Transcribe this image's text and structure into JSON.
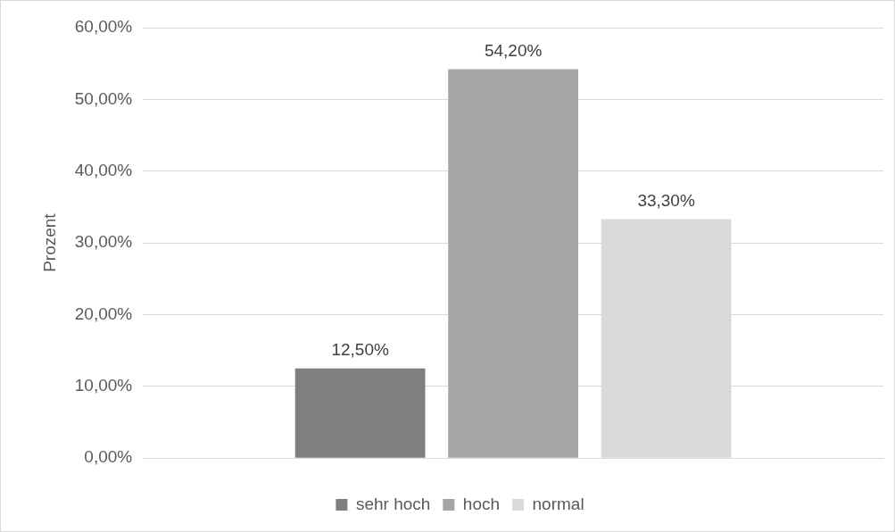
{
  "chart_data": {
    "type": "bar",
    "ylabel": "Prozent",
    "categories": [
      null
    ],
    "series": [
      {
        "name": "sehr hoch",
        "color": "#7f7f7f",
        "values": [
          12.5
        ],
        "value_labels": [
          "12,50%"
        ]
      },
      {
        "name": "hoch",
        "color": "#a5a5a5",
        "values": [
          54.2
        ],
        "value_labels": [
          "54,20%"
        ]
      },
      {
        "name": "normal",
        "color": "#d9d9d9",
        "values": [
          33.3
        ],
        "value_labels": [
          "33,30%"
        ]
      }
    ],
    "ylim": [
      0,
      60
    ],
    "yticks": [
      {
        "value": 0,
        "label": "0,00%"
      },
      {
        "value": 10,
        "label": "10,00%"
      },
      {
        "value": 20,
        "label": "20,00%"
      },
      {
        "value": 30,
        "label": "30,00%"
      },
      {
        "value": 40,
        "label": "40,00%"
      },
      {
        "value": 50,
        "label": "50,00%"
      },
      {
        "value": 60,
        "label": "60,00%"
      }
    ],
    "grid": "y",
    "legend": "bottom"
  }
}
